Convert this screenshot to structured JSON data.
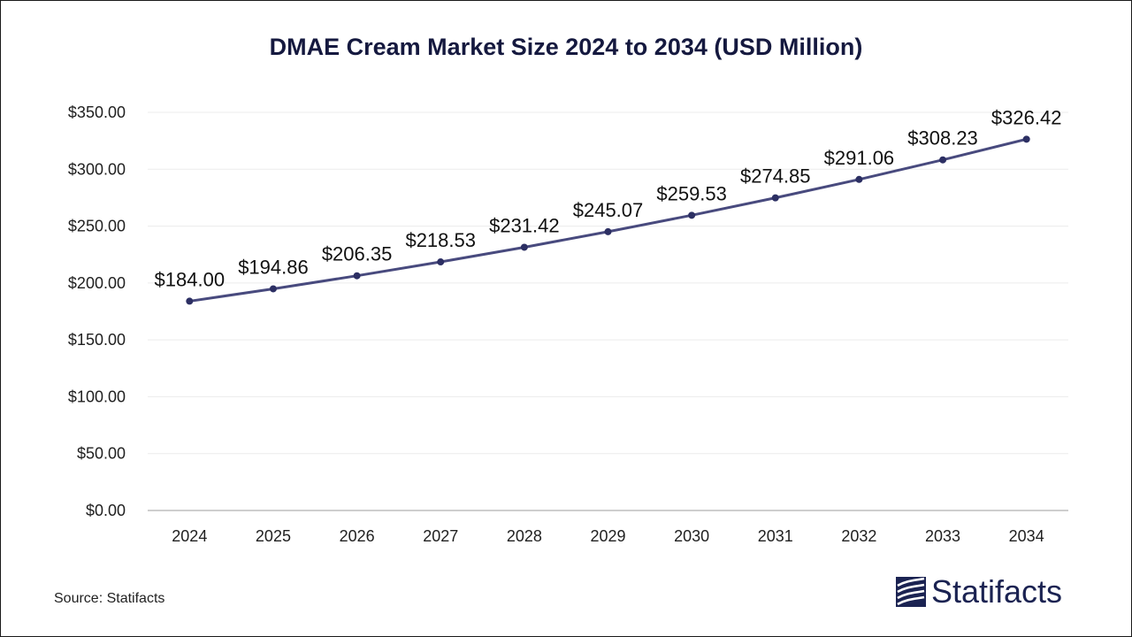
{
  "colors": {
    "line": "#484a7e",
    "marker": "#2c2f63",
    "title": "#15193f",
    "grid": "#ececec",
    "axis": "#bdbdbd",
    "logo": "#1b2352"
  },
  "source": "Source: Statifacts",
  "logo": {
    "text": "Statifacts",
    "icon": "statifacts-logo-icon"
  },
  "chart_data": {
    "type": "line",
    "title": "DMAE Cream Market Size 2024 to 2034 (USD Million)",
    "xlabel": "",
    "ylabel": "",
    "categories": [
      "2024",
      "2025",
      "2026",
      "2027",
      "2028",
      "2029",
      "2030",
      "2031",
      "2032",
      "2033",
      "2034"
    ],
    "values": [
      184.0,
      194.86,
      206.35,
      218.53,
      231.42,
      245.07,
      259.53,
      274.85,
      291.06,
      308.23,
      326.42
    ],
    "data_labels": [
      "$184.00",
      "$194.86",
      "$206.35",
      "$218.53",
      "$231.42",
      "$245.07",
      "$259.53",
      "$274.85",
      "$291.06",
      "$308.23",
      "$326.42"
    ],
    "ylim": [
      0,
      350
    ],
    "yticks": [
      0,
      50,
      100,
      150,
      200,
      250,
      300,
      350
    ],
    "ytick_labels": [
      "$0.00",
      "$50.00",
      "$100.00",
      "$150.00",
      "$200.00",
      "$250.00",
      "$300.00",
      "$350.00"
    ],
    "grid": true,
    "legend": "none"
  }
}
